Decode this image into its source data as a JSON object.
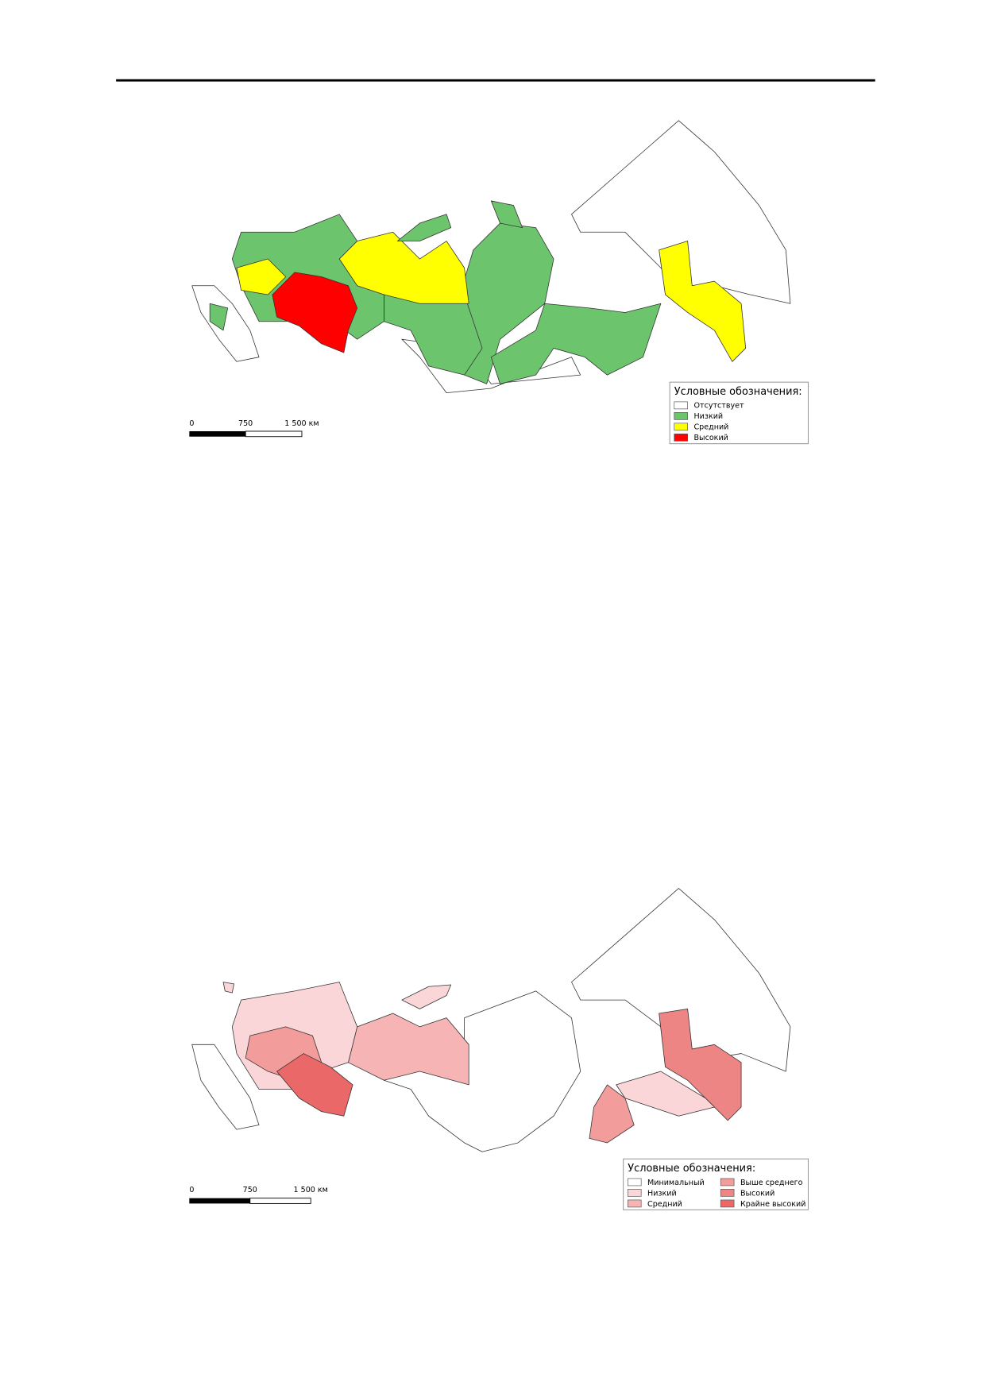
{
  "figures": [
    {
      "legend": {
        "title": "Условные обозначения:",
        "items": [
          {
            "label": "Отсутствует",
            "color": "#ffffff"
          },
          {
            "label": "Низкий",
            "color": "#6cc46c"
          },
          {
            "label": "Средний",
            "color": "#ffff00"
          },
          {
            "label": "Высокий",
            "color": "#ff0000"
          }
        ]
      },
      "scale_bar": {
        "labels": [
          "0",
          "750",
          "1 500 км"
        ]
      }
    },
    {
      "legend": {
        "title": "Условные обозначения:",
        "items": [
          {
            "label": "Минимальный",
            "color": "#ffffff"
          },
          {
            "label": "Низкий",
            "color": "#fad6d8"
          },
          {
            "label": "Средний",
            "color": "#f6b4b4"
          },
          {
            "label": "Выше среднего",
            "color": "#f29c9c"
          },
          {
            "label": "Высокий",
            "color": "#ee8585"
          },
          {
            "label": "Крайне высокий",
            "color": "#ea6868"
          }
        ]
      },
      "scale_bar": {
        "labels": [
          "0",
          "750",
          "1 500 км"
        ]
      }
    }
  ]
}
